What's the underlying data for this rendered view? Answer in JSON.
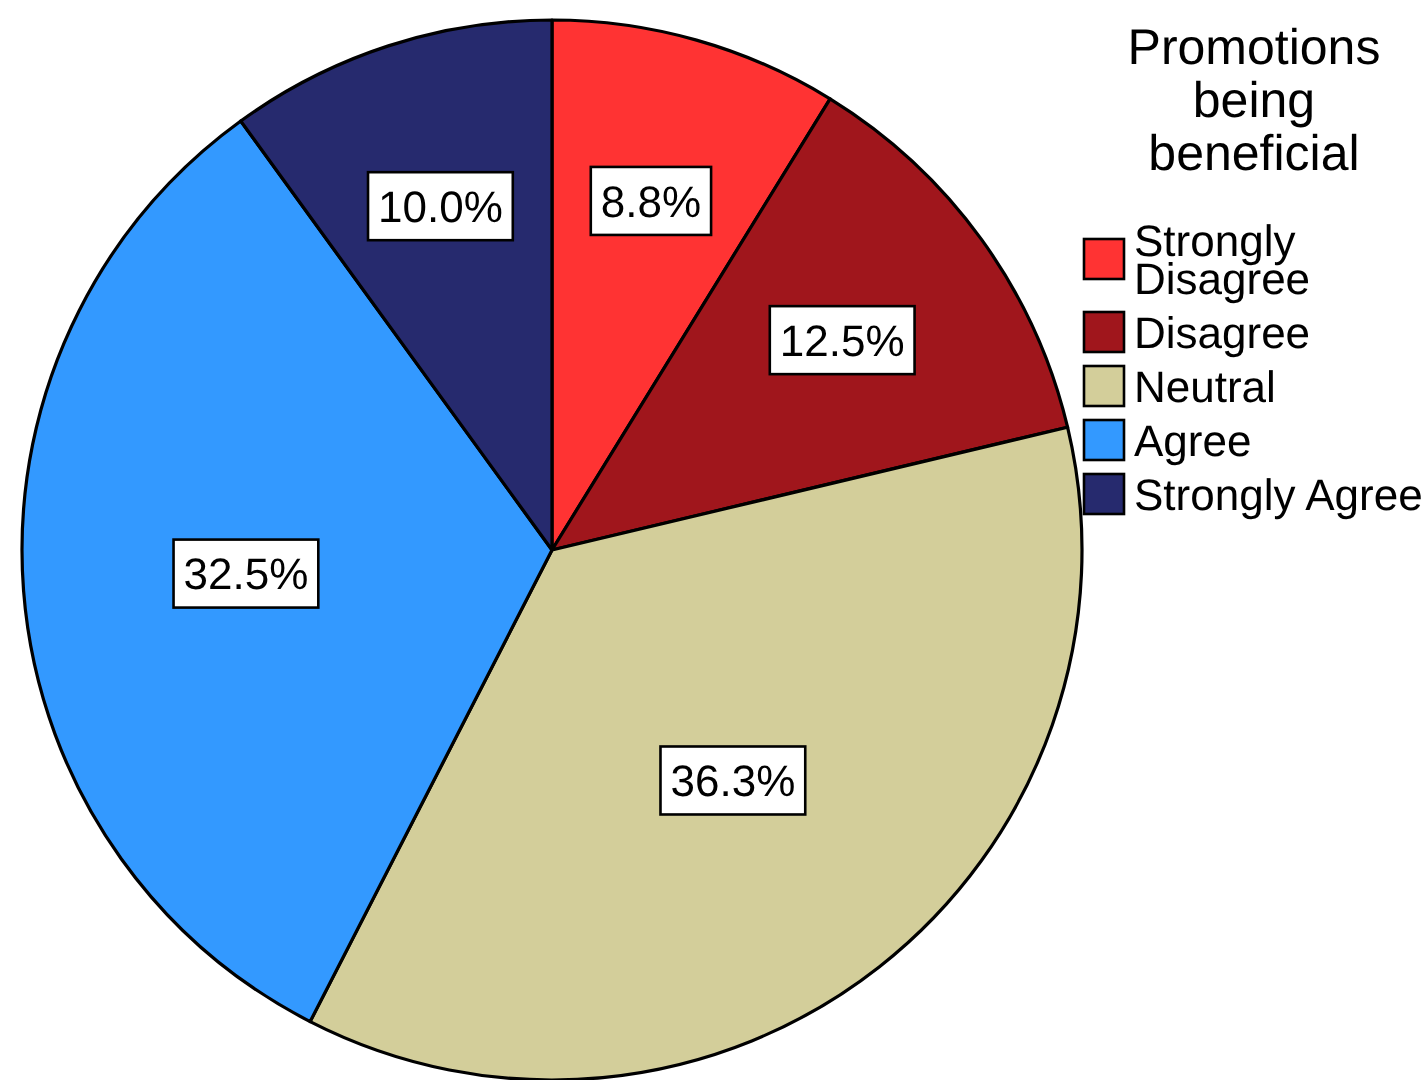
{
  "chart_data": {
    "type": "pie",
    "legend_title": "Promotions being beneficial",
    "categories": [
      "Strongly Disagree",
      "Disagree",
      "Neutral",
      "Agree",
      "Strongly Agree"
    ],
    "values": [
      8.8,
      12.5,
      36.3,
      32.5,
      10.0
    ],
    "colors": [
      "#ff3333",
      "#a0161c",
      "#d3ce9a",
      "#3399ff",
      "#262a6e"
    ],
    "value_labels": [
      "8.8%",
      "12.5%",
      "36.3%",
      "32.5%",
      "10.0%"
    ],
    "legend": "top right"
  }
}
